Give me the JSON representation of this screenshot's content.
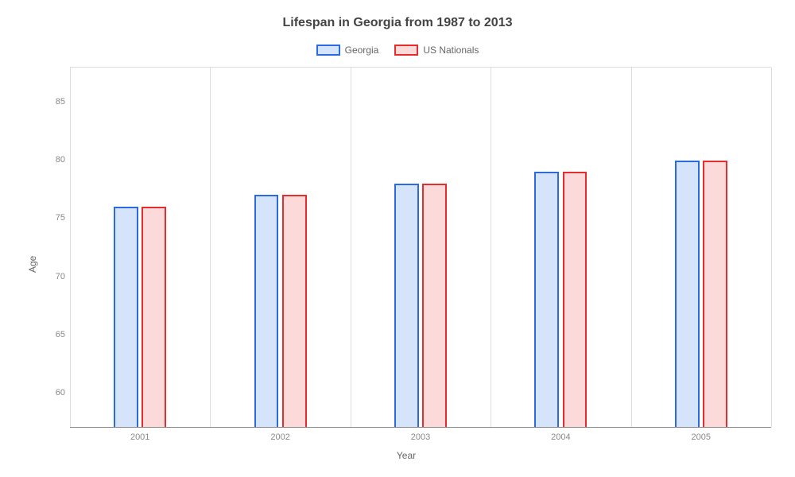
{
  "chart": {
    "type": "bar",
    "title": "Lifespan in Georgia from 1987 to 2013",
    "title_fontsize": 16,
    "title_color": "#444444",
    "xlabel": "Year",
    "ylabel": "Age",
    "label_fontsize": 12,
    "label_color": "#666666",
    "categories": [
      "2001",
      "2002",
      "2003",
      "2004",
      "2005"
    ],
    "series": [
      {
        "name": "Georgia",
        "fill_color": "#d6e4fb",
        "border_color": "#2a6be2",
        "values": [
          76,
          77,
          78,
          79,
          80
        ]
      },
      {
        "name": "US Nationals",
        "fill_color": "#fcdada",
        "border_color": "#e62c2c",
        "values": [
          76,
          77,
          78,
          79,
          80
        ]
      }
    ],
    "ylim": [
      57,
      88
    ],
    "yticks": [
      60,
      65,
      70,
      75,
      80,
      85
    ],
    "tick_fontsize": 11,
    "tick_color": "#888888",
    "background_color": "#ffffff",
    "grid_color": "#dddddd",
    "bar_width_pct": 3.5,
    "bar_gap_pct": 0.5,
    "border_width": 2,
    "legend_swatch_w": 30,
    "legend_swatch_h": 14
  }
}
